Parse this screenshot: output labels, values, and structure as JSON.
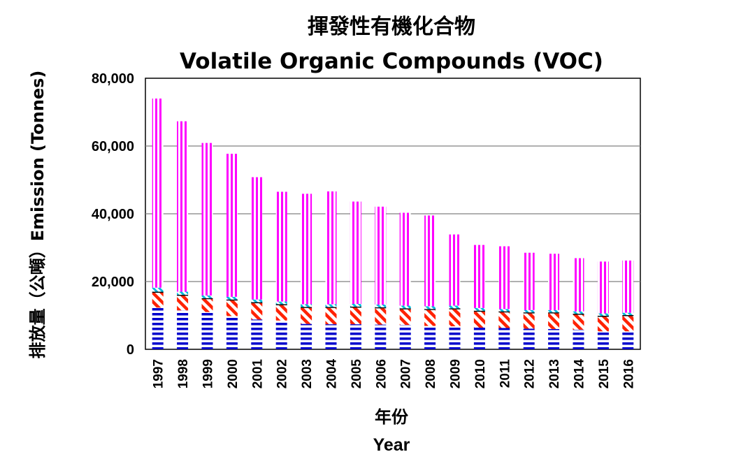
{
  "chart_data": {
    "type": "bar",
    "stacked": true,
    "title": "揮發性有機化合物",
    "subtitle": "Volatile Organic Compounds (VOC)",
    "xlabel_zh": "年份",
    "xlabel_en": "Year",
    "ylabel": "排放量（公噸）Emission (Tonnes)",
    "ylim": [
      0,
      80000
    ],
    "yticks": [
      0,
      20000,
      40000,
      60000,
      80000
    ],
    "ytick_labels": [
      "0",
      "20,000",
      "40,000",
      "60,000",
      "80,000"
    ],
    "grid": true,
    "categories": [
      "1997",
      "1998",
      "1999",
      "2000",
      "2001",
      "2002",
      "2003",
      "2004",
      "2005",
      "2006",
      "2007",
      "2008",
      "2009",
      "2010",
      "2011",
      "2012",
      "2013",
      "2014",
      "2015",
      "2016"
    ],
    "series": [
      {
        "name": "Series 1 (blue horizontal stripes)",
        "color": "#0000cc",
        "values": [
          12300,
          11500,
          11000,
          9800,
          8800,
          8500,
          7500,
          7400,
          7400,
          7300,
          7200,
          6900,
          6800,
          6400,
          6300,
          6100,
          6000,
          5800,
          5300,
          5300
        ]
      },
      {
        "name": "Series 2 (red diagonal stripes)",
        "color": "#ff2200",
        "values": [
          4400,
          4300,
          3800,
          4600,
          4800,
          4500,
          4700,
          4800,
          4900,
          4800,
          4600,
          4700,
          5000,
          4700,
          4600,
          4500,
          4600,
          4400,
          4300,
          4500
        ]
      },
      {
        "name": "Series 3 (black)",
        "color": "#000000",
        "values": [
          300,
          300,
          300,
          300,
          300,
          300,
          300,
          300,
          300,
          300,
          300,
          300,
          300,
          300,
          300,
          300,
          300,
          300,
          300,
          300
        ]
      },
      {
        "name": "Series 4 (cyan diagonal stripes)",
        "color": "#00bbdd",
        "values": [
          1200,
          900,
          800,
          800,
          800,
          800,
          800,
          800,
          800,
          800,
          800,
          800,
          800,
          800,
          700,
          700,
          700,
          700,
          700,
          700
        ]
      },
      {
        "name": "Series 5 (magenta vertical stripes)",
        "color": "#ff00ff",
        "values": [
          55800,
          50300,
          45000,
          42200,
          36100,
          32400,
          32600,
          33300,
          30200,
          28900,
          27400,
          26800,
          21000,
          18600,
          18500,
          16900,
          16600,
          15700,
          15300,
          15400
        ]
      }
    ]
  }
}
